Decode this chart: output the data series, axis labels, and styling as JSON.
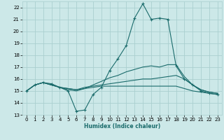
{
  "xlabel": "Humidex (Indice chaleur)",
  "bg_color": "#cce8e8",
  "grid_color": "#aacfcf",
  "line_color": "#1a6b6b",
  "ylim": [
    13,
    22.5
  ],
  "xlim": [
    -0.5,
    23.5
  ],
  "yticks": [
    13,
    14,
    15,
    16,
    17,
    18,
    19,
    20,
    21,
    22
  ],
  "xticks": [
    0,
    1,
    2,
    3,
    4,
    5,
    6,
    7,
    8,
    9,
    10,
    11,
    12,
    13,
    14,
    15,
    16,
    17,
    18,
    19,
    20,
    21,
    22,
    23
  ],
  "series": [
    {
      "x": [
        0,
        1,
        2,
        3,
        4,
        5,
        6,
        7,
        8,
        9,
        10,
        11,
        12,
        13,
        14,
        15,
        16,
        17,
        18,
        19,
        20,
        21,
        22,
        23
      ],
      "y": [
        15.0,
        15.5,
        15.7,
        15.6,
        15.3,
        15.0,
        13.3,
        13.4,
        14.7,
        15.3,
        16.7,
        17.7,
        18.8,
        21.1,
        22.3,
        21.0,
        21.1,
        21.0,
        17.1,
        16.0,
        15.5,
        15.0,
        14.8,
        14.7
      ],
      "marker": true
    },
    {
      "x": [
        0,
        1,
        2,
        3,
        4,
        5,
        6,
        7,
        8,
        9,
        10,
        11,
        12,
        13,
        14,
        15,
        16,
        17,
        18,
        19,
        20,
        21,
        22,
        23
      ],
      "y": [
        15.0,
        15.5,
        15.7,
        15.5,
        15.3,
        15.1,
        15.0,
        15.2,
        15.5,
        15.8,
        16.1,
        16.3,
        16.6,
        16.8,
        17.0,
        17.1,
        17.0,
        17.2,
        17.2,
        16.2,
        15.5,
        15.1,
        14.9,
        14.8
      ],
      "marker": false
    },
    {
      "x": [
        0,
        1,
        2,
        3,
        4,
        5,
        6,
        7,
        8,
        9,
        10,
        11,
        12,
        13,
        14,
        15,
        16,
        17,
        18,
        19,
        20,
        21,
        22,
        23
      ],
      "y": [
        15.0,
        15.5,
        15.7,
        15.5,
        15.3,
        15.2,
        15.1,
        15.3,
        15.4,
        15.5,
        15.6,
        15.7,
        15.8,
        15.9,
        16.0,
        16.0,
        16.1,
        16.2,
        16.3,
        16.0,
        15.5,
        15.1,
        14.9,
        14.8
      ],
      "marker": false
    },
    {
      "x": [
        0,
        1,
        2,
        3,
        4,
        5,
        6,
        7,
        8,
        9,
        10,
        11,
        12,
        13,
        14,
        15,
        16,
        17,
        18,
        19,
        20,
        21,
        22,
        23
      ],
      "y": [
        15.0,
        15.5,
        15.7,
        15.5,
        15.3,
        15.2,
        15.1,
        15.2,
        15.3,
        15.4,
        15.4,
        15.4,
        15.4,
        15.4,
        15.4,
        15.4,
        15.4,
        15.4,
        15.4,
        15.2,
        15.0,
        14.9,
        14.8,
        14.7
      ],
      "marker": false
    }
  ]
}
